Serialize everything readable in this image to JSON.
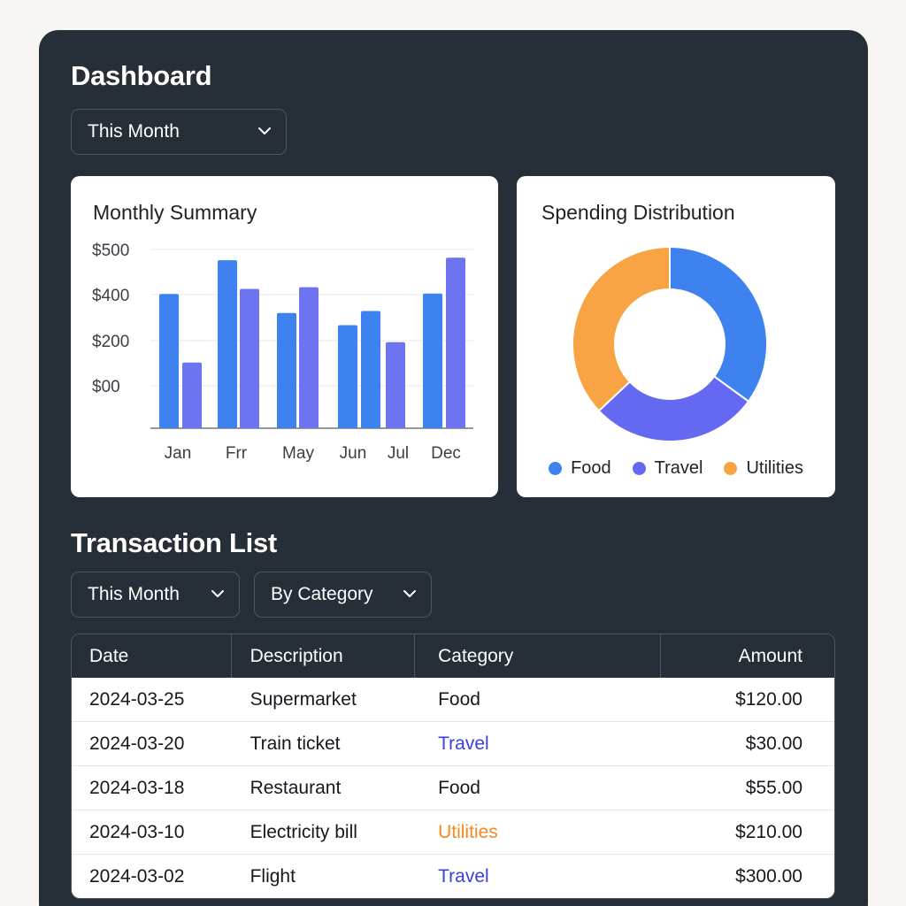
{
  "dashboard": {
    "title": "Dashboard",
    "period_select": {
      "value": "This Month"
    }
  },
  "monthly_summary": {
    "title": "Monthly Summary",
    "chart_data": {
      "type": "bar",
      "title": "Monthly Summary",
      "y_tick_labels": [
        "$500",
        "$400",
        "$200",
        "$00"
      ],
      "categories": [
        "Jan",
        "Frr",
        "May",
        "Jun",
        "Jul",
        "Dec"
      ],
      "groups": [
        {
          "label": "Jan",
          "values": [
            323,
            158
          ]
        },
        {
          "label": "Frr",
          "values": [
            404,
            335
          ]
        },
        {
          "label": "May",
          "values": [
            277,
            339
          ]
        },
        {
          "label": "Jun",
          "values": [
            248,
            282
          ],
          "extra": []
        },
        {
          "label": "Jul",
          "values": [
            207
          ]
        },
        {
          "label": "Dec",
          "values": [
            324,
            410
          ]
        }
      ],
      "bars": [
        {
          "category": "Jan",
          "value": 323,
          "color": "#3e82f0"
        },
        {
          "category": "Jan",
          "value": 158,
          "color": "#6e74ef"
        },
        {
          "category": "Frr",
          "value": 404,
          "color": "#3e82f0"
        },
        {
          "category": "Frr",
          "value": 335,
          "color": "#6e74ef"
        },
        {
          "category": "May",
          "value": 277,
          "color": "#3e82f0"
        },
        {
          "category": "May",
          "value": 339,
          "color": "#6e74ef"
        },
        {
          "category": "Jun",
          "value": 248,
          "color": "#3e82f0"
        },
        {
          "category": "Jun",
          "value": 282,
          "color": "#3e82f0"
        },
        {
          "category": "Jul",
          "value": 207,
          "color": "#6e74ef"
        },
        {
          "category": "Dec",
          "value": 324,
          "color": "#3e82f0"
        },
        {
          "category": "Dec",
          "value": 410,
          "color": "#6e74ef"
        }
      ],
      "ylim": [
        0,
        500
      ],
      "grid": true
    }
  },
  "spending_distribution": {
    "title": "Spending Distribution",
    "chart_data": {
      "type": "pie",
      "variant": "donut",
      "slices": [
        {
          "name": "Food",
          "value": 35,
          "color": "#3e82f0"
        },
        {
          "name": "Travel",
          "value": 28,
          "color": "#6569f1"
        },
        {
          "name": "Utilities",
          "value": 37,
          "color": "#f8a444"
        }
      ],
      "legend_placement": "bottom"
    },
    "legend": [
      {
        "label": "Food",
        "color": "#3e82f0"
      },
      {
        "label": "Travel",
        "color": "#6569f1"
      },
      {
        "label": "Utilities",
        "color": "#f8a444"
      }
    ]
  },
  "transactions": {
    "title": "Transaction List",
    "period_select": {
      "value": "This Month"
    },
    "group_select": {
      "value": "By Category"
    },
    "columns": [
      "Date",
      "Description",
      "Category",
      "Amount"
    ],
    "rows": [
      {
        "date": "2024-03-25",
        "description": "Supermarket",
        "category": "Food",
        "amount": "$120.00",
        "category_color": "#15191e"
      },
      {
        "date": "2024-03-20",
        "description": "Train ticket",
        "category": "Travel",
        "amount": "$30.00",
        "category_color": "#3a3fe0"
      },
      {
        "date": "2024-03-18",
        "description": "Restaurant",
        "category": "Food",
        "amount": "$55.00",
        "category_color": "#15191e"
      },
      {
        "date": "2024-03-10",
        "description": "Electricity bill",
        "category": "Utilities",
        "amount": "$210.00",
        "category_color": "#f28a1e"
      },
      {
        "date": "2024-03-02",
        "description": "Flight",
        "category": "Travel",
        "amount": "$300.00",
        "category_color": "#3a3fe0"
      }
    ]
  }
}
